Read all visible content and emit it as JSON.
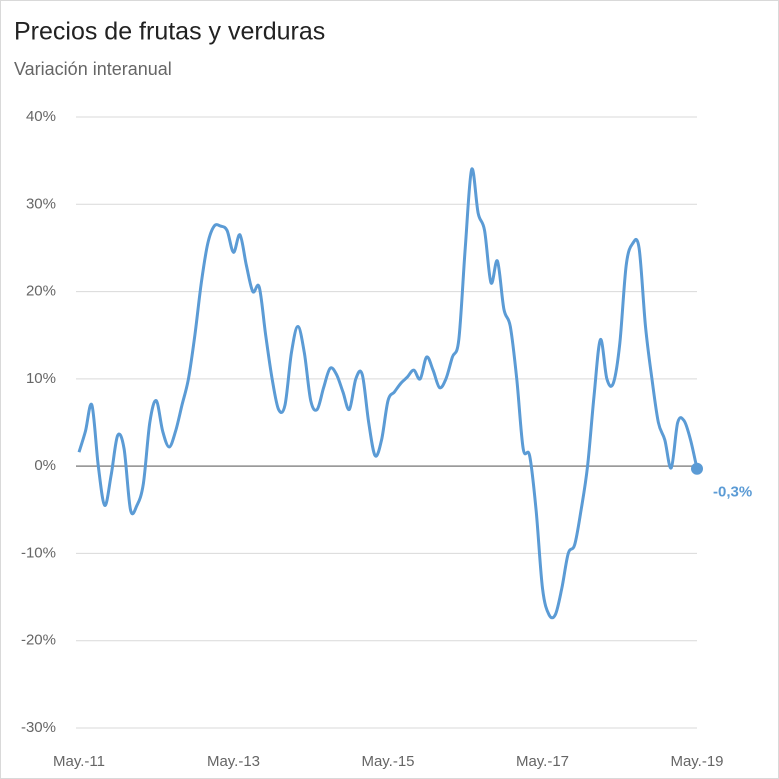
{
  "chart_data": {
    "type": "line",
    "title": "Precios de frutas y verduras",
    "subtitle": "Variación interanual",
    "categories": [
      "May.-11",
      null,
      null,
      null,
      null,
      null,
      null,
      null,
      null,
      null,
      null,
      null,
      null,
      null,
      null,
      null,
      null,
      null,
      null,
      null,
      null,
      null,
      null,
      null,
      "May.-13",
      null,
      null,
      null,
      null,
      null,
      null,
      null,
      null,
      null,
      null,
      null,
      null,
      null,
      null,
      null,
      null,
      null,
      null,
      null,
      null,
      null,
      null,
      null,
      "May.-15",
      null,
      null,
      null,
      null,
      null,
      null,
      null,
      null,
      null,
      null,
      null,
      null,
      null,
      null,
      null,
      null,
      null,
      null,
      null,
      null,
      null,
      null,
      null,
      "May.-17",
      null,
      null,
      null,
      null,
      null,
      null,
      null,
      null,
      null,
      null,
      null,
      null,
      null,
      null,
      null,
      null,
      null,
      null,
      null,
      null,
      null,
      null,
      null,
      "May.-19"
    ],
    "values": [
      1.6,
      4,
      7,
      0,
      -4.5,
      -1,
      3.5,
      2,
      -5,
      -4.5,
      -2,
      5,
      7.5,
      4,
      2.2,
      4,
      7,
      10,
      15,
      21,
      25.5,
      27.5,
      27.5,
      27,
      24.5,
      26.5,
      23,
      20,
      20.5,
      15,
      10,
      6.5,
      7,
      13,
      16,
      13,
      7.5,
      6.5,
      9,
      11.2,
      10.5,
      8.5,
      6.5,
      10,
      10.5,
      5,
      1.2,
      3,
      7.5,
      8.5,
      9.5,
      10.2,
      11,
      10,
      12.5,
      11,
      9,
      10,
      12.5,
      14.5,
      25,
      34,
      29,
      27,
      21,
      23.5,
      18,
      16,
      10,
      2,
      1.2,
      -5,
      -14,
      -17,
      -17,
      -14,
      -10,
      -9,
      -5,
      0,
      8,
      14.5,
      10,
      9.5,
      14,
      23,
      25.5,
      25,
      16,
      10,
      5,
      3,
      -0.2,
      5,
      5.2,
      3,
      -0.3
    ],
    "value_labels": [
      null,
      null,
      null,
      null,
      null,
      null,
      null,
      null,
      null,
      null,
      null,
      null,
      null,
      null,
      null,
      null,
      null,
      null,
      null,
      null,
      null,
      null,
      null,
      null,
      null,
      null,
      null,
      null,
      null,
      null,
      null,
      null,
      null,
      null,
      null,
      null,
      null,
      null,
      null,
      null,
      null,
      null,
      null,
      null,
      null,
      null,
      null,
      null,
      null,
      null,
      null,
      null,
      null,
      null,
      null,
      null,
      null,
      null,
      null,
      null,
      null,
      null,
      null,
      null,
      null,
      null,
      null,
      null,
      null,
      null,
      null,
      null,
      null,
      null,
      null,
      null,
      null,
      null,
      null,
      null,
      null,
      null,
      null,
      null,
      null,
      null,
      null,
      null,
      null,
      null,
      null,
      null,
      null,
      null,
      null,
      null,
      "-0,3%"
    ],
    "color": "#5b9bd5",
    "ylim": [
      -30,
      40
    ],
    "yticks": [
      {
        "value": -30,
        "label": "-30%"
      },
      {
        "value": -20,
        "label": "-20%"
      },
      {
        "value": -10,
        "label": "-10%"
      },
      {
        "value": 0,
        "label": "0%"
      },
      {
        "value": 10,
        "label": "10%"
      },
      {
        "value": 20,
        "label": "20%"
      },
      {
        "value": 30,
        "label": "30%"
      },
      {
        "value": 40,
        "label": "40%"
      }
    ],
    "grid": true
  }
}
